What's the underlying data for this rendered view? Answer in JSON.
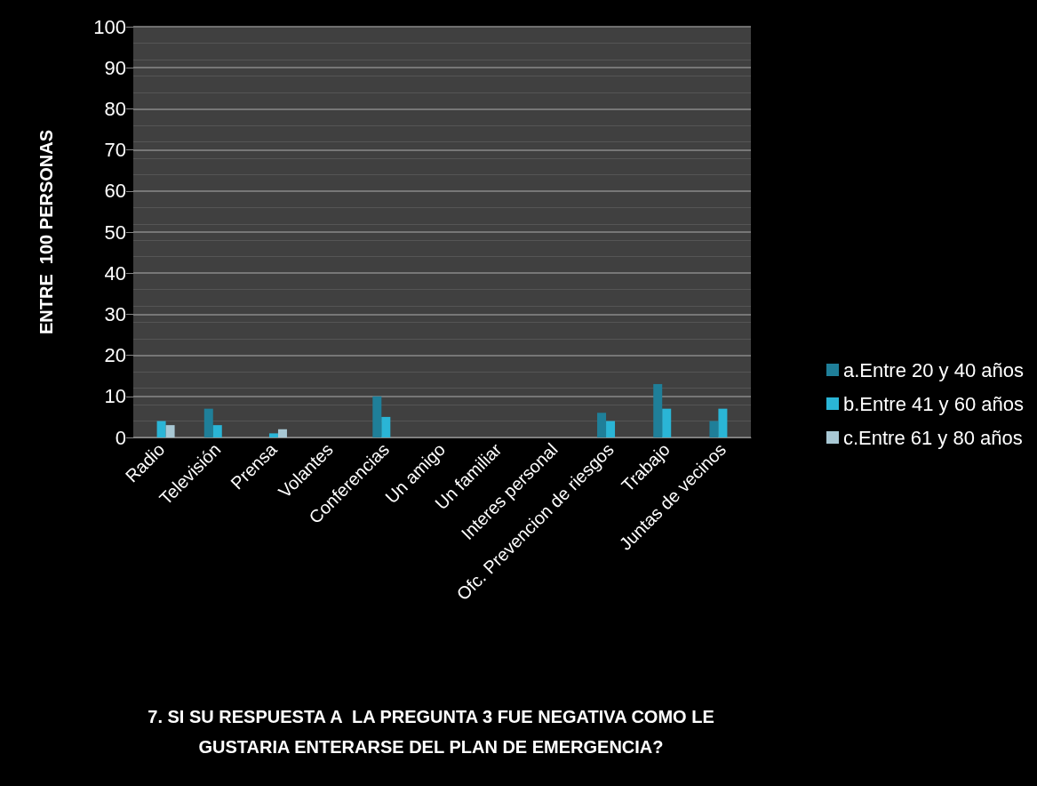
{
  "chart_data": {
    "type": "bar",
    "title": "7. SI SU RESPUESTA A  LA PREGUNTA 3 FUE NEGATIVA COMO LE\nGUSTARIA ENTERARSE DEL PLAN DE EMERGENCIA?",
    "ylabel": "ENTRE  100 PERSONAS",
    "categories": [
      "Radio",
      "Televisión",
      "Prensa",
      "Volantes",
      "Conferencias",
      "Un amigo",
      "Un familiar",
      "Interes personal",
      "Ofc. Prevencion de riesgos",
      "Trabajo",
      "Juntas de vecinos"
    ],
    "series": [
      {
        "name": "a.Entre 20 y 40 años",
        "color": "#1f7f99",
        "values": [
          0,
          7,
          0,
          0,
          10,
          0,
          0,
          0,
          6,
          13,
          4
        ]
      },
      {
        "name": "b.Entre 41 y 60 años",
        "color": "#2ab5d6",
        "values": [
          4,
          3,
          1,
          0,
          5,
          0,
          0,
          0,
          4,
          7,
          7
        ]
      },
      {
        "name": "c.Entre 61 y 80 años",
        "color": "#a8c8d4",
        "values": [
          3,
          0,
          2,
          0,
          0,
          0,
          0,
          0,
          0,
          0,
          0
        ]
      }
    ],
    "ylim": [
      0,
      100
    ],
    "yticks": [
      0,
      10,
      20,
      30,
      40,
      50,
      60,
      70,
      80,
      90,
      100
    ],
    "grid": "y",
    "legend": "right"
  }
}
